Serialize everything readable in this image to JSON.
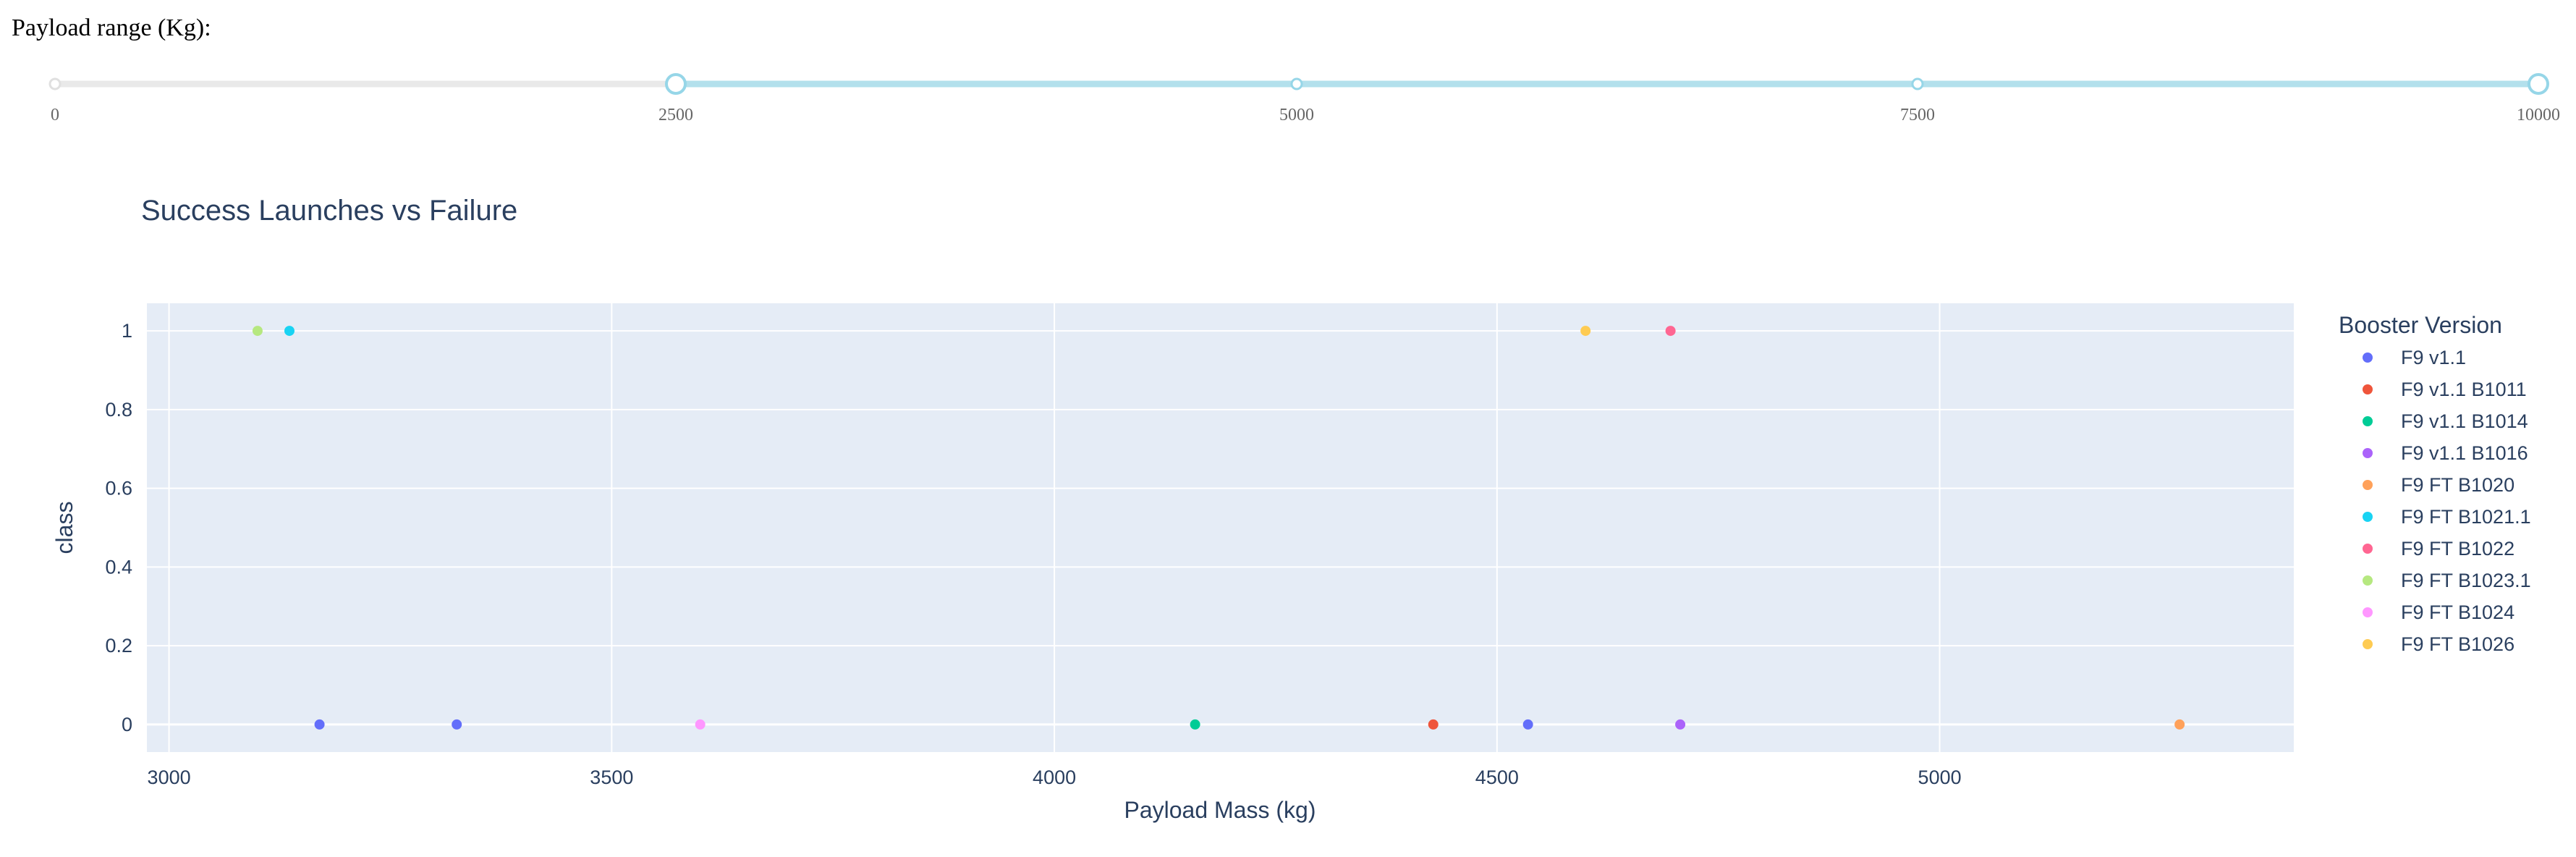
{
  "slider": {
    "label": "Payload range (Kg):",
    "min": 0,
    "max": 10000,
    "value": [
      2500,
      10000
    ],
    "marks": [
      "0",
      "2500",
      "5000",
      "7500",
      "10000"
    ],
    "colors": {
      "track": "#e9e9e9",
      "active": "#b3e0ec",
      "handle": "#96d6e8"
    }
  },
  "chart_data": {
    "type": "scatter",
    "title": "Success Launches vs Failure",
    "xlabel": "Payload Mass (kg)",
    "ylabel": "class",
    "xlim": [
      2975,
      5400
    ],
    "ylim": [
      -0.07,
      1.07
    ],
    "x_ticks": [
      3000,
      3500,
      4000,
      4500,
      5000
    ],
    "y_ticks": [
      0,
      0.2,
      0.4,
      0.6,
      0.8,
      1
    ],
    "x_tick_labels": [
      "3000",
      "3500",
      "4000",
      "4500",
      "5000"
    ],
    "y_tick_labels": [
      "0",
      "0.2",
      "0.4",
      "0.6",
      "0.8",
      "1"
    ],
    "grid": true,
    "legend_title": "Booster Version",
    "legend_position": "right",
    "series": [
      {
        "name": "F9 v1.1",
        "color": "#636efa",
        "points": [
          [
            3170,
            0
          ],
          [
            3325,
            0
          ],
          [
            4535,
            0
          ]
        ]
      },
      {
        "name": "F9 v1.1 B1011",
        "color": "#EF553B",
        "points": [
          [
            4428,
            0
          ]
        ]
      },
      {
        "name": "F9 v1.1 B1014",
        "color": "#00cc96",
        "points": [
          [
            4159,
            0
          ]
        ]
      },
      {
        "name": "F9 v1.1 B1016",
        "color": "#ab63fa",
        "points": [
          [
            4707,
            0
          ]
        ]
      },
      {
        "name": "F9 FT B1020",
        "color": "#FFA15A",
        "points": [
          [
            5271,
            0
          ]
        ]
      },
      {
        "name": "F9 FT B1021.1",
        "color": "#19d3f3",
        "points": [
          [
            3136,
            1
          ]
        ]
      },
      {
        "name": "F9 FT B1022",
        "color": "#FF6692",
        "points": [
          [
            4696,
            1
          ]
        ]
      },
      {
        "name": "F9 FT B1023.1",
        "color": "#B6E880",
        "points": [
          [
            3100,
            1
          ]
        ]
      },
      {
        "name": "F9 FT B1024",
        "color": "#FF97FF",
        "points": [
          [
            3600,
            0
          ]
        ]
      },
      {
        "name": "F9 FT B1026",
        "color": "#FECB52",
        "points": [
          [
            4600,
            1
          ]
        ]
      }
    ]
  }
}
